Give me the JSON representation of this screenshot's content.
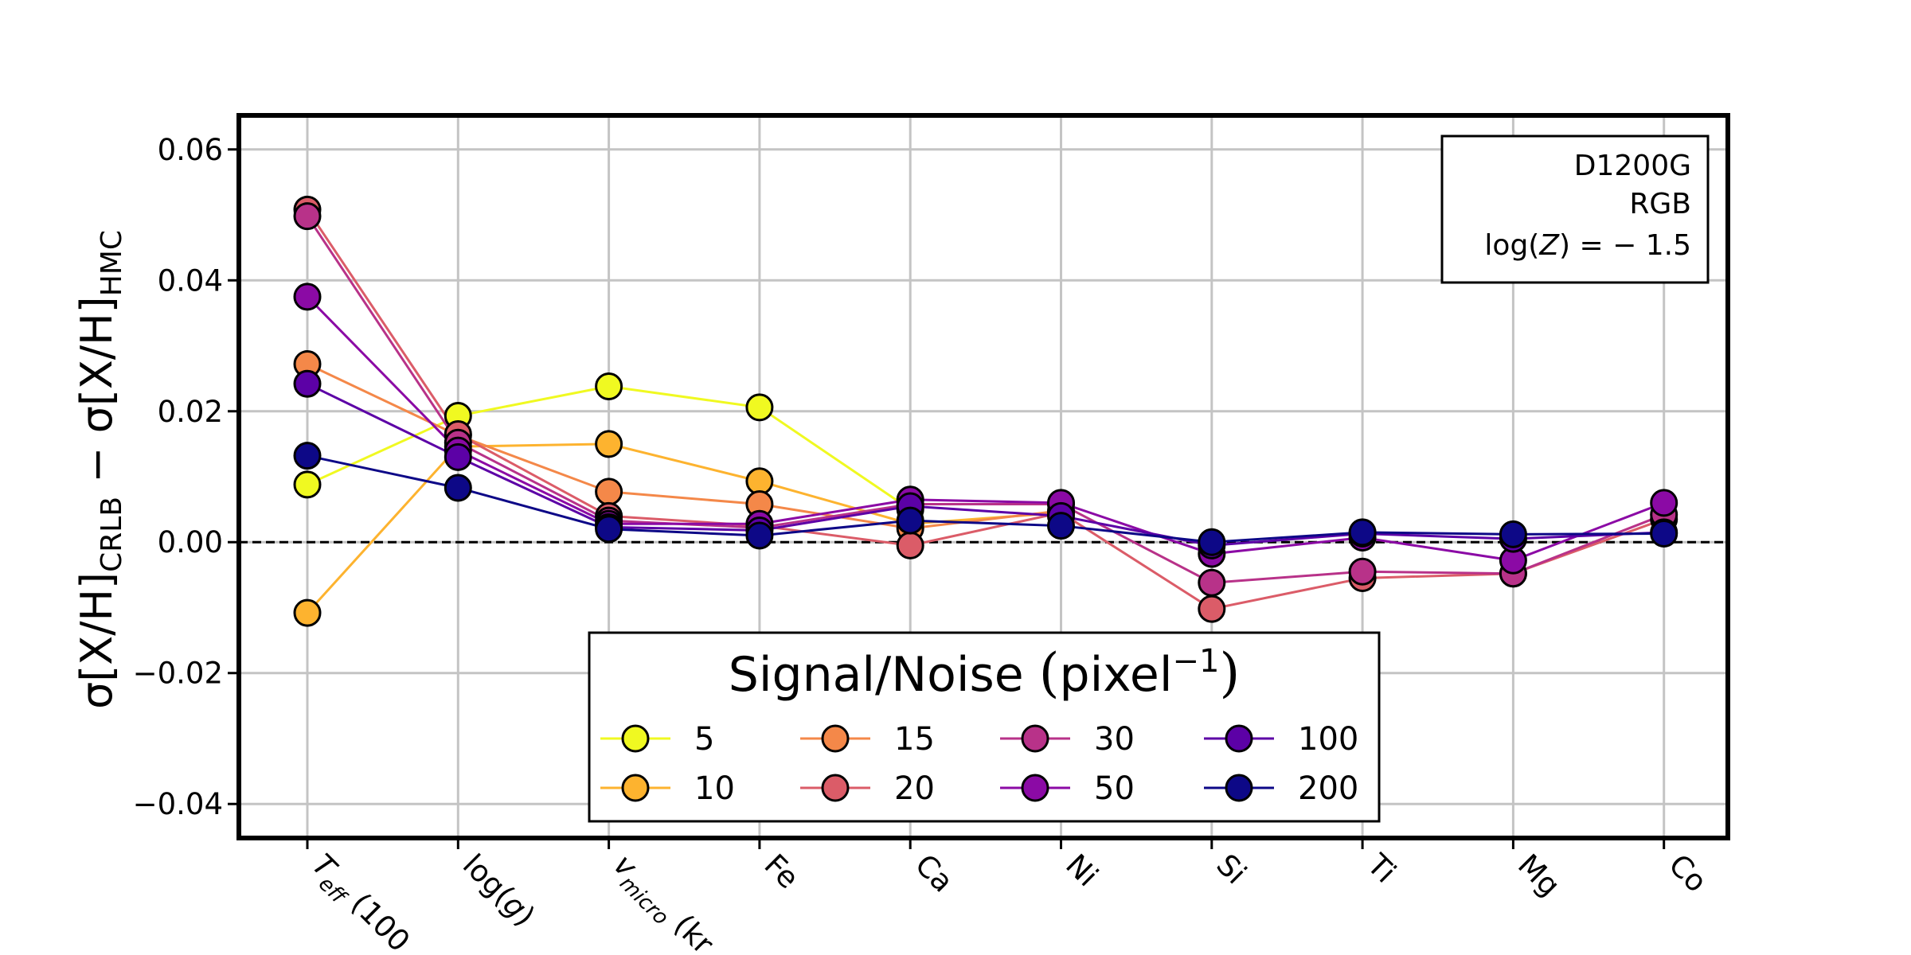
{
  "chart_data": {
    "type": "line",
    "ylabel_parts": {
      "a": "σ[X/H]",
      "a_sub": "CRLB",
      "minus": " − ",
      "b": "σ[X/H]",
      "b_sub": "HMC"
    },
    "categories": [
      {
        "main": "T",
        "sub": "eff",
        "tail": " (100"
      },
      {
        "main": "log(",
        "ital": "g",
        "tail": ")"
      },
      {
        "main": "v",
        "sub": "micro",
        "tail": " (kr"
      },
      {
        "main": "Fe"
      },
      {
        "main": "Ca"
      },
      {
        "main": "Ni"
      },
      {
        "main": "Si"
      },
      {
        "main": "Ti"
      },
      {
        "main": "Mg"
      },
      {
        "main": "Co"
      }
    ],
    "yticks": [
      -0.04,
      -0.02,
      0.0,
      0.02,
      0.04,
      0.06
    ],
    "ytick_labels": [
      "−0.04",
      "−0.02",
      "0.00",
      "0.02",
      "0.04",
      "0.06"
    ],
    "ylim": [
      -0.0452,
      0.0652
    ],
    "grid": true,
    "zero_line": true,
    "annotation": {
      "line1": "D1200G",
      "line2": "RGB",
      "line3_pre": "log(",
      "line3_ital": "Z",
      "line3_post": ") = − 1.5"
    },
    "legend": {
      "title_main": "Signal/Noise ",
      "title_lp": "(",
      "title_unit": "pixel",
      "title_sup": "−1",
      "title_rp": ")",
      "position": "bottom-center",
      "columns": 4
    },
    "series": [
      {
        "name": "5",
        "color": "#f0f921",
        "values": [
          0.0088,
          0.0193,
          0.0238,
          0.0206,
          0.005,
          null,
          null,
          null,
          null,
          null
        ]
      },
      {
        "name": "10",
        "color": "#fdb32f",
        "values": [
          -0.0108,
          0.0146,
          0.015,
          0.0093,
          0.0028,
          0.0045,
          null,
          null,
          null,
          null
        ]
      },
      {
        "name": "15",
        "color": "#f48849",
        "values": [
          0.0272,
          0.0163,
          0.0077,
          0.0058,
          0.0021,
          0.0048,
          null,
          null,
          null,
          null
        ]
      },
      {
        "name": "20",
        "color": "#db5c68",
        "values": [
          0.0508,
          0.0165,
          0.004,
          0.0025,
          -0.0005,
          0.0045,
          -0.0102,
          -0.0055,
          -0.0048,
          0.0035
        ]
      },
      {
        "name": "30",
        "color": "#b83289",
        "values": [
          0.0498,
          0.0152,
          0.0033,
          0.0022,
          0.0058,
          0.0058,
          -0.0062,
          -0.0045,
          -0.0048,
          0.0042
        ]
      },
      {
        "name": "50",
        "color": "#8b0aa5",
        "values": [
          0.0375,
          0.014,
          0.0028,
          0.0028,
          0.0065,
          0.006,
          -0.0018,
          0.0007,
          -0.0028,
          0.006
        ]
      },
      {
        "name": "100",
        "color": "#5c01a6",
        "values": [
          0.0242,
          0.013,
          0.0023,
          0.0018,
          0.0055,
          0.004,
          -0.0005,
          0.0013,
          0.0005,
          0.0015
        ]
      },
      {
        "name": "200",
        "color": "#0d0887",
        "values": [
          0.0132,
          0.0083,
          0.002,
          0.001,
          0.0033,
          0.0025,
          0.0,
          0.0015,
          0.0012,
          0.0013
        ]
      }
    ]
  }
}
